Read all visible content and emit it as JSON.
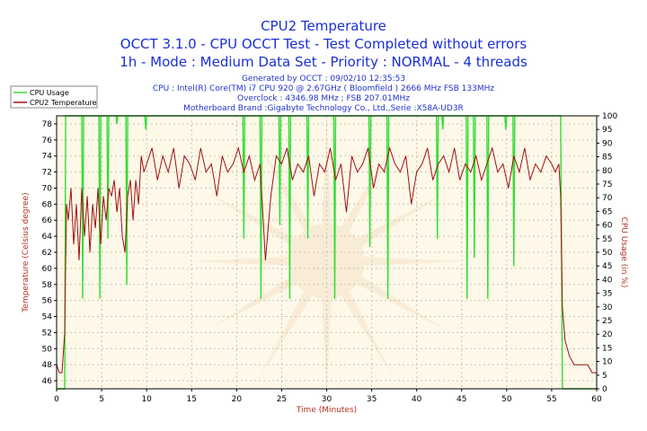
{
  "header": {
    "title": "CPU2 Temperature",
    "line2": "OCCT 3.1.0 - CPU OCCT Test - Test Completed without errors",
    "line3": "1h - Mode : Medium Data Set - Priority : NORMAL - 4 threads",
    "generated": "Generated by OCCT : 09/02/10 12:35:53",
    "cpu": "CPU : Intel(R) Core(TM) i7 CPU 920 @ 2.67GHz ( Bloomfield ) 2666 MHz FSB 133MHz",
    "overclock": "Overclock : 4346.98 MHz ; FSB 207.01MHz",
    "motherboard": "Motherboard Brand :Gigabyte Technology Co., Ltd.,Serie :X58A-UD3R"
  },
  "colors": {
    "cpu_usage": "#33dd33",
    "temperature": "#a01010",
    "plot_bg": "#fdf8e8",
    "watermark": "#f6e3c8",
    "text": "#1a2fd6",
    "axis_label": "#b03020"
  },
  "chart_data": {
    "type": "line",
    "title": "CPU2 Temperature",
    "xlabel": "Time (Minutes)",
    "ylabel": "Temperature (Celsius degree)",
    "y2label": "CPU Usage (in %)",
    "xlim": [
      0,
      60
    ],
    "ylim": [
      45,
      79
    ],
    "y2lim": [
      0,
      100
    ],
    "xticks": [
      0,
      5,
      10,
      15,
      20,
      25,
      30,
      35,
      40,
      45,
      50,
      55,
      60
    ],
    "yticks": [
      46,
      48,
      50,
      52,
      54,
      56,
      58,
      60,
      62,
      64,
      66,
      68,
      70,
      72,
      74,
      76,
      78
    ],
    "y2ticks": [
      0,
      5,
      10,
      15,
      20,
      25,
      30,
      35,
      40,
      45,
      50,
      55,
      60,
      65,
      70,
      75,
      80,
      85,
      90,
      95,
      100
    ],
    "grid": true,
    "legend": "top-left",
    "series": [
      {
        "name": "CPU Usage",
        "axis": "right",
        "x": [
          0,
          0.9,
          1.0,
          1.2,
          2.8,
          2.9,
          3.0,
          4.7,
          4.8,
          4.9,
          5.6,
          5.7,
          5.8,
          6.6,
          6.7,
          6.8,
          7.7,
          7.8,
          7.9,
          9.8,
          9.9,
          10.0,
          20.7,
          20.8,
          20.9,
          22.6,
          22.7,
          22.8,
          24.7,
          24.8,
          24.9,
          25.8,
          25.9,
          26.0,
          27.8,
          27.9,
          28.0,
          30.8,
          30.9,
          31.0,
          34.7,
          34.8,
          34.9,
          36.7,
          36.8,
          36.9,
          42.2,
          42.3,
          42.4,
          42.8,
          42.9,
          43.0,
          45.5,
          45.6,
          45.7,
          46.3,
          46.4,
          46.5,
          47.8,
          47.9,
          48.0,
          49.8,
          49.9,
          50.0,
          50.7,
          50.8,
          50.9,
          56.0,
          56.2,
          60
        ],
        "values": [
          0,
          0,
          100,
          100,
          100,
          33,
          100,
          100,
          33,
          100,
          100,
          55,
          100,
          100,
          97,
          100,
          100,
          38,
          100,
          100,
          95,
          100,
          100,
          55,
          100,
          100,
          33,
          100,
          100,
          60,
          100,
          100,
          33,
          100,
          100,
          55,
          100,
          100,
          33,
          100,
          100,
          52,
          100,
          100,
          33,
          100,
          100,
          55,
          100,
          100,
          95,
          100,
          100,
          33,
          100,
          100,
          48,
          100,
          100,
          33,
          100,
          100,
          95,
          100,
          100,
          45,
          100,
          100,
          0,
          0
        ]
      },
      {
        "name": "CPU2 Temperature",
        "axis": "left",
        "x": [
          0,
          0.3,
          0.6,
          0.9,
          1.1,
          1.3,
          1.6,
          1.9,
          2.2,
          2.5,
          2.8,
          3.1,
          3.4,
          3.7,
          4.0,
          4.3,
          4.6,
          4.9,
          5.2,
          5.5,
          5.8,
          6.1,
          6.4,
          6.7,
          7.0,
          7.3,
          7.6,
          7.9,
          8.2,
          8.5,
          8.8,
          9.1,
          9.4,
          9.7,
          10.0,
          10.6,
          11.2,
          11.8,
          12.4,
          13.0,
          13.6,
          14.2,
          14.8,
          15.4,
          16.0,
          16.6,
          17.2,
          17.8,
          18.4,
          19.0,
          19.6,
          20.2,
          20.8,
          21.4,
          22.0,
          22.6,
          23.2,
          23.8,
          24.4,
          25.0,
          25.6,
          26.2,
          26.8,
          27.4,
          28.0,
          28.6,
          29.2,
          29.8,
          30.4,
          31.0,
          31.6,
          32.2,
          32.8,
          33.4,
          34.0,
          34.6,
          35.2,
          35.8,
          36.4,
          37.0,
          37.6,
          38.2,
          38.8,
          39.4,
          40.0,
          40.6,
          41.2,
          41.8,
          42.4,
          43.0,
          43.6,
          44.2,
          44.8,
          45.4,
          46.0,
          46.6,
          47.2,
          47.8,
          48.4,
          49.0,
          49.6,
          50.2,
          50.8,
          51.4,
          52.0,
          52.6,
          53.2,
          53.8,
          54.4,
          55.0,
          55.4,
          55.8,
          56.0,
          56.2,
          56.5,
          57.0,
          57.5,
          58.0,
          58.5,
          59.0,
          59.5,
          60
        ],
        "values": [
          48,
          47,
          47,
          52,
          68,
          66,
          70,
          63,
          68,
          61,
          70,
          64,
          69,
          62,
          68,
          65,
          70,
          63,
          69,
          66,
          70,
          69,
          71,
          67,
          70,
          64,
          62,
          69,
          71,
          66,
          71,
          68,
          74,
          72,
          73,
          75,
          71,
          74,
          72,
          75,
          70,
          74,
          73,
          71,
          75,
          72,
          73,
          69,
          74,
          72,
          73,
          75,
          72,
          74,
          71,
          73,
          61,
          69,
          74,
          73,
          75,
          71,
          73,
          72,
          74,
          69,
          73,
          72,
          75,
          71,
          73,
          67,
          74,
          72,
          73,
          75,
          70,
          73,
          72,
          75,
          73,
          72,
          74,
          68,
          72,
          73,
          75,
          71,
          73,
          74,
          72,
          75,
          71,
          73,
          72,
          74,
          71,
          73,
          75,
          72,
          73,
          70,
          74,
          72,
          75,
          71,
          73,
          72,
          74,
          73,
          72,
          73,
          69,
          55,
          51,
          49,
          48,
          48,
          48,
          48,
          47,
          47
        ]
      }
    ]
  }
}
